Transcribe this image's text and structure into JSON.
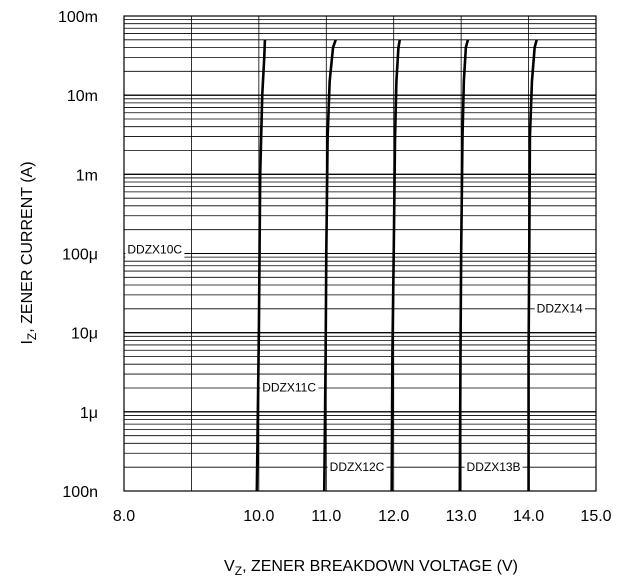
{
  "chart_data": {
    "type": "line",
    "title": "",
    "xlabel": "V",
    "xlabel_sub": "Z",
    "xlabel_rest": ", ZENER BREAKDOWN VOLTAGE (V)",
    "ylabel": "I",
    "ylabel_sub": "Z",
    "ylabel_rest": ", ZENER CURRENT (A)",
    "x_scale": "linear",
    "y_scale": "log",
    "xlim": [
      8.0,
      15.0
    ],
    "ylim": [
      1e-07,
      0.1
    ],
    "grid": true,
    "x_ticks": [
      8.0,
      9.0,
      10.0,
      11.0,
      12.0,
      13.0,
      14.0,
      15.0
    ],
    "x_tick_labels": [
      "8.0",
      "",
      "10.0",
      "11.0",
      "12.0",
      "13.0",
      "14.0",
      "15.0"
    ],
    "y_ticks": [
      0.1,
      0.01,
      0.001,
      0.0001,
      1e-05,
      1e-06,
      1e-07
    ],
    "y_tick_labels": [
      "100m",
      "10m",
      "1m",
      "100μ",
      "10μ",
      "1μ",
      "100n"
    ],
    "series": [
      {
        "name": "DDZX10C",
        "label_at": [
          8.05,
          0.0001
        ],
        "points": [
          [
            9.97,
            1e-07
          ],
          [
            10.0,
            1e-05
          ],
          [
            10.02,
            0.001
          ],
          [
            10.05,
            0.01
          ],
          [
            10.08,
            0.03
          ],
          [
            10.09,
            0.05
          ]
        ]
      },
      {
        "name": "DDZX11C",
        "label_at": [
          10.05,
          1.8e-06
        ],
        "points": [
          [
            10.97,
            1e-07
          ],
          [
            10.99,
            5e-06
          ],
          [
            11.0,
            0.0001
          ],
          [
            11.02,
            0.003
          ],
          [
            11.05,
            0.015
          ],
          [
            11.1,
            0.04
          ],
          [
            11.14,
            0.05
          ]
        ]
      },
      {
        "name": "DDZX12C",
        "label_at": [
          11.05,
          1.8e-07
        ],
        "points": [
          [
            11.97,
            1e-07
          ],
          [
            11.98,
            5e-06
          ],
          [
            12.0,
            0.0001
          ],
          [
            12.02,
            0.003
          ],
          [
            12.04,
            0.015
          ],
          [
            12.07,
            0.04
          ],
          [
            12.09,
            0.05
          ]
        ]
      },
      {
        "name": "DDZX13B",
        "label_at": [
          13.08,
          1.8e-07
        ],
        "points": [
          [
            12.98,
            1e-07
          ],
          [
            12.99,
            5e-06
          ],
          [
            13.0,
            0.0001
          ],
          [
            13.02,
            0.003
          ],
          [
            13.04,
            0.015
          ],
          [
            13.07,
            0.04
          ],
          [
            13.1,
            0.05
          ]
        ]
      },
      {
        "name": "DDZX14",
        "label_at": [
          14.12,
          1.8e-05
        ],
        "points": [
          [
            14.0,
            1e-07
          ],
          [
            14.0,
            5e-06
          ],
          [
            14.01,
            0.0001
          ],
          [
            14.02,
            0.003
          ],
          [
            14.05,
            0.015
          ],
          [
            14.09,
            0.04
          ],
          [
            14.12,
            0.05
          ]
        ]
      }
    ]
  }
}
